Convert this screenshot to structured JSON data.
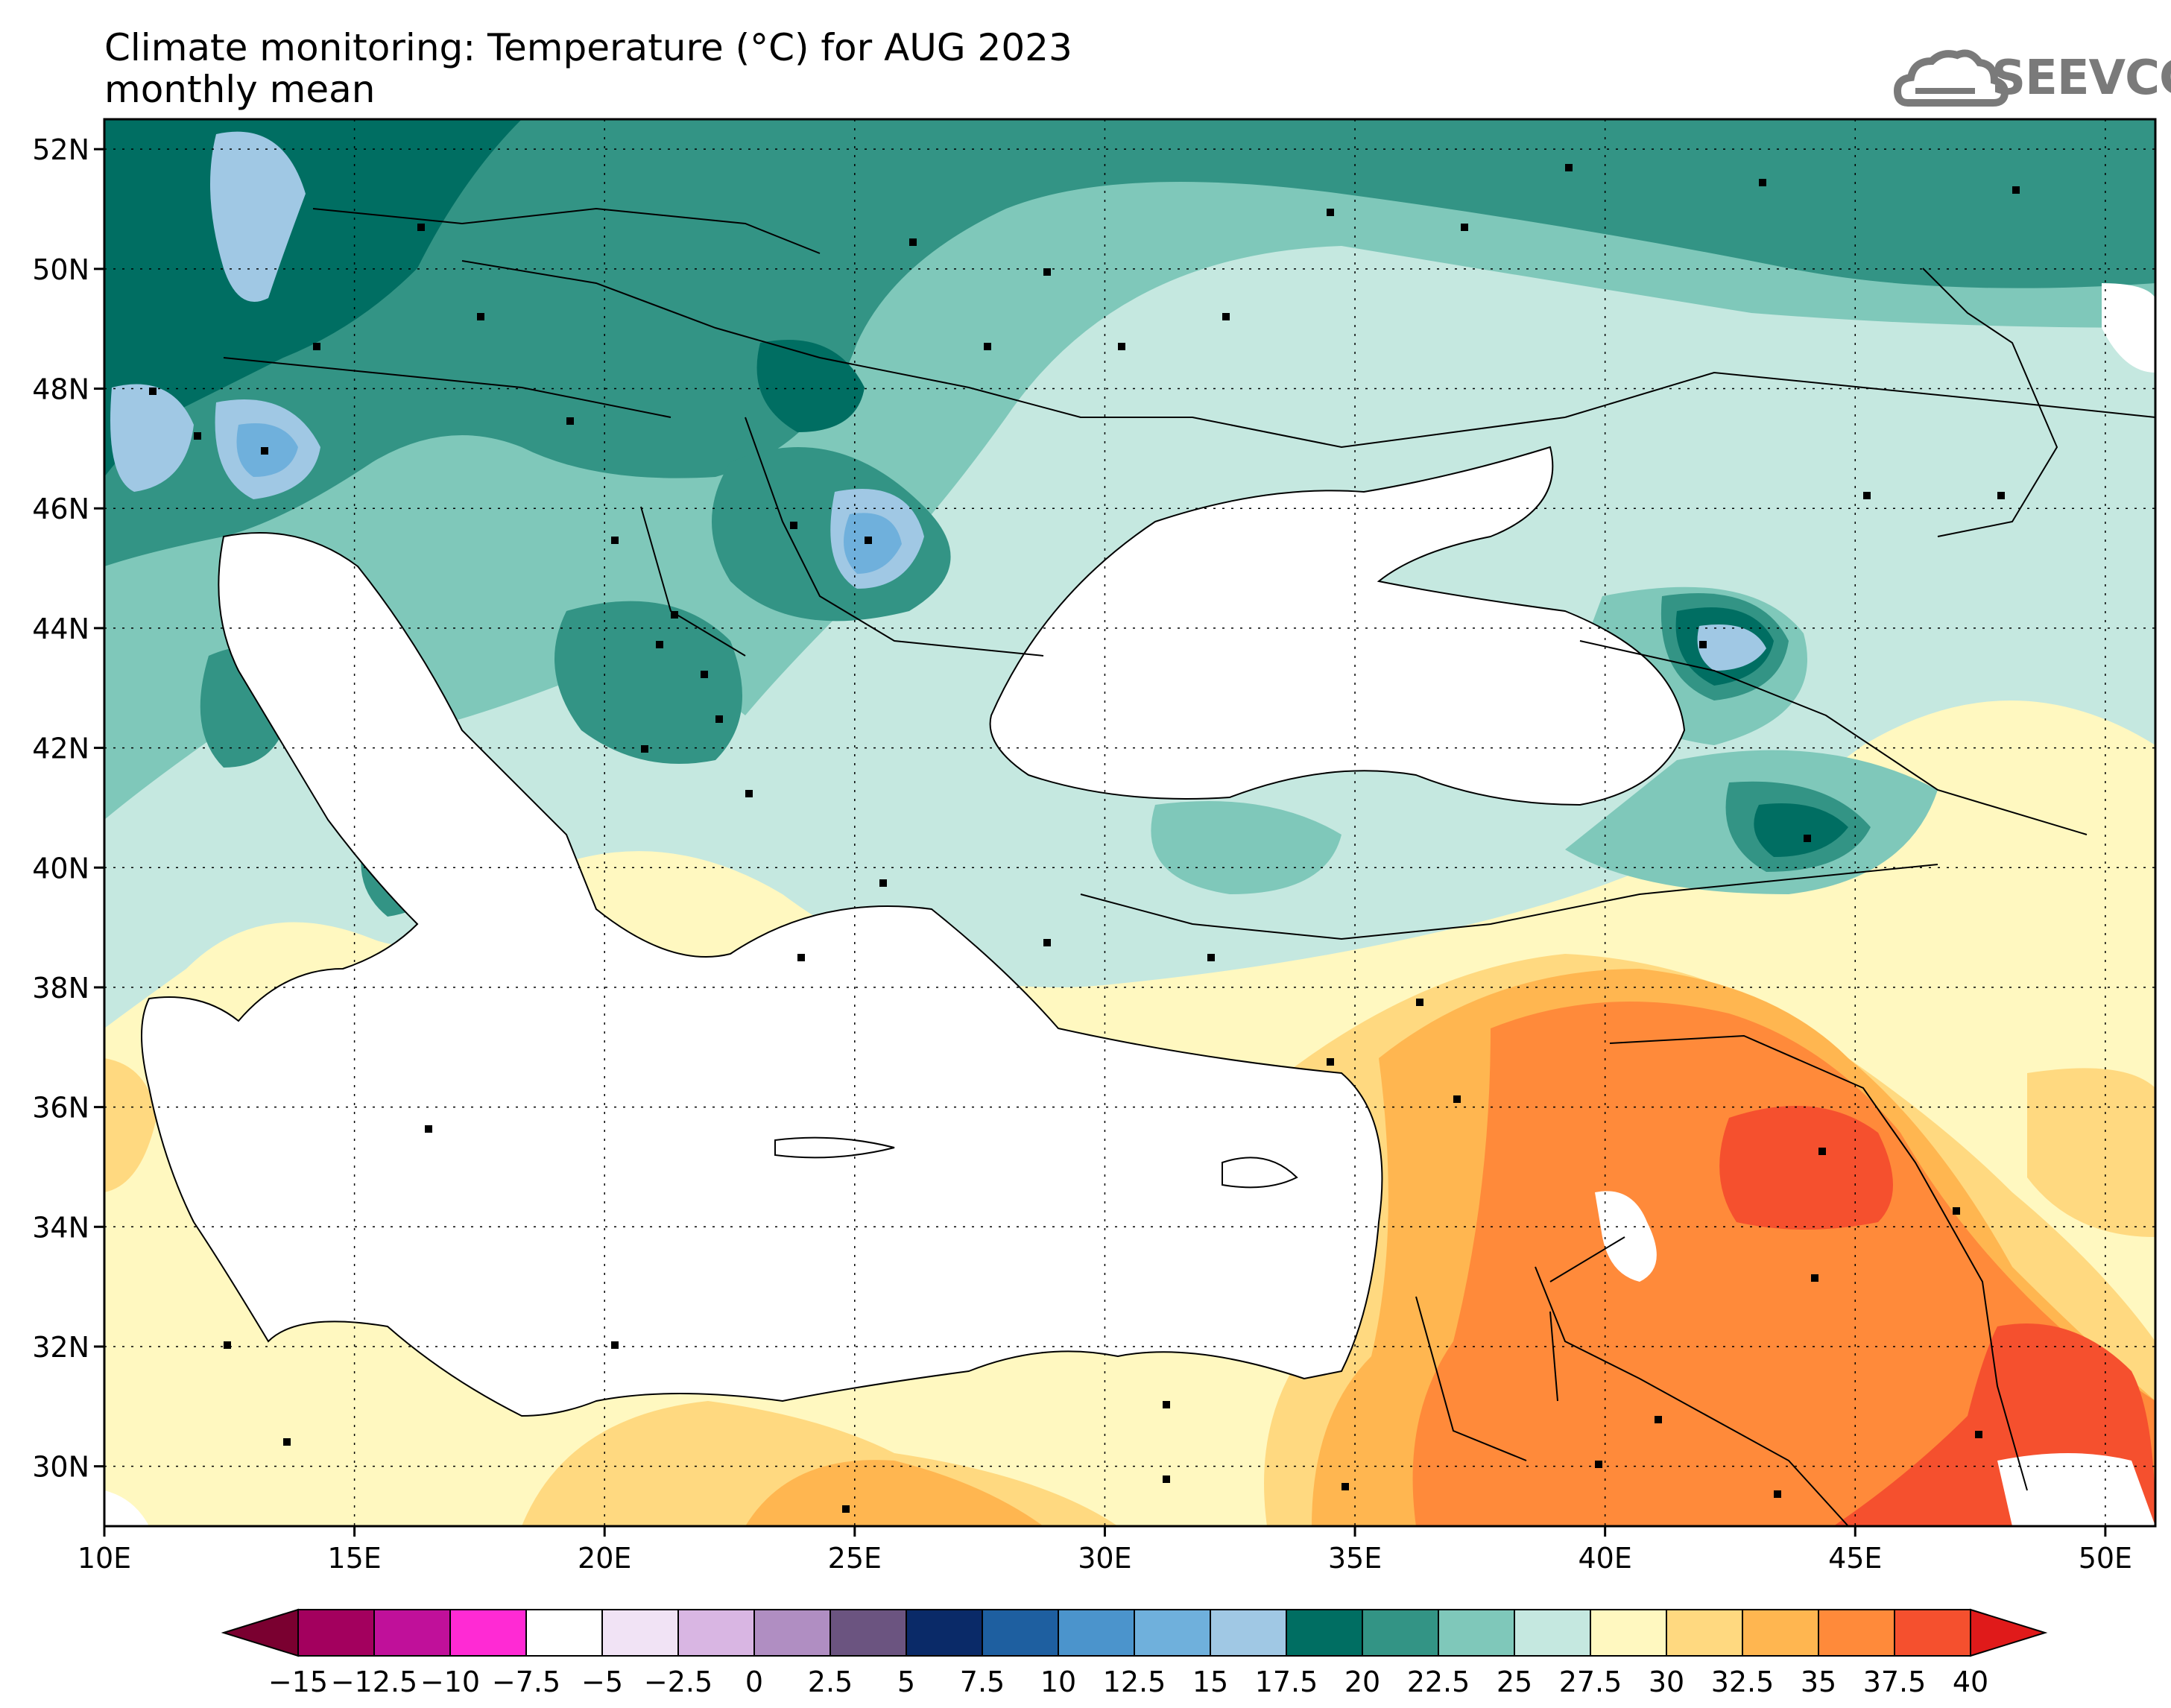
{
  "title": {
    "line1": "Climate monitoring: Temperature (°C) for AUG 2023",
    "line2": "monthly mean"
  },
  "logo": {
    "text": "SEEVCCC",
    "icon": "cloud-icon"
  },
  "map": {
    "lat_labels": [
      "52N",
      "50N",
      "48N",
      "46N",
      "44N",
      "42N",
      "40N",
      "38N",
      "36N",
      "34N",
      "32N",
      "30N"
    ],
    "lon_labels": [
      "10E",
      "15E",
      "20E",
      "25E",
      "30E",
      "35E",
      "40E",
      "45E",
      "50E"
    ],
    "lat_values": [
      52,
      50,
      48,
      46,
      44,
      42,
      40,
      38,
      36,
      34,
      32,
      30
    ],
    "lon_values": [
      10,
      15,
      20,
      25,
      30,
      35,
      40,
      45,
      50
    ],
    "lon_range": [
      10,
      51
    ],
    "lat_range": [
      29,
      52.5
    ],
    "grid": "dotted"
  },
  "colorbar": {
    "labels": [
      "−15",
      "−12.5",
      "−10",
      "−7.5",
      "−5",
      "−2.5",
      "0",
      "2.5",
      "5",
      "7.5",
      "10",
      "12.5",
      "15",
      "17.5",
      "20",
      "22.5",
      "25",
      "27.5",
      "30",
      "32.5",
      "35",
      "37.5",
      "40"
    ],
    "colors": [
      "#a3005e",
      "#c0109a",
      "#ff2ad4",
      "#ffffff",
      "#f1e3f5",
      "#d9b6e3",
      "#b08ec2",
      "#6b5480",
      "#0a2a68",
      "#1e5fa0",
      "#4b94cc",
      "#6fb0dc",
      "#a0c8e4",
      "#006e62",
      "#339485",
      "#7fc8ba",
      "#c5e8e0",
      "#fff8c0",
      "#ffd980",
      "#ffb650",
      "#ff8a3a",
      "#f5502e"
    ],
    "low_color": "#7a0030",
    "high_color": "#e01a1a"
  }
}
